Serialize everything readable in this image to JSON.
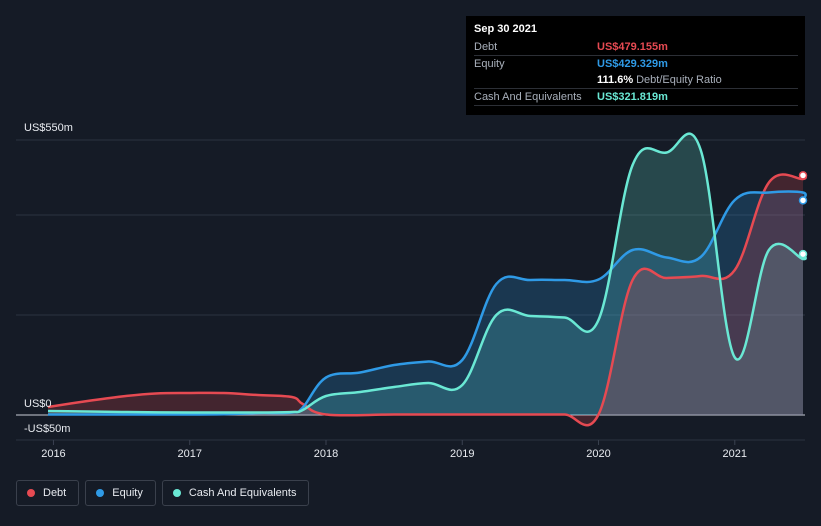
{
  "tooltip": {
    "date": "Sep 30 2021",
    "rows": [
      {
        "label": "Debt",
        "value": "US$479.155m",
        "color": "#e64a52"
      },
      {
        "label": "Equity",
        "value": "US$429.329m",
        "color": "#2f9ae6"
      },
      {
        "ratio_value": "111.6%",
        "ratio_label": "Debt/Equity Ratio"
      },
      {
        "label": "Cash And Equivalents",
        "value": "US$321.819m",
        "color": "#6ae8d4"
      }
    ]
  },
  "legend": [
    {
      "label": "Debt",
      "color": "#e64a52"
    },
    {
      "label": "Equity",
      "color": "#2f9ae6"
    },
    {
      "label": "Cash And Equivalents",
      "color": "#6ae8d4"
    }
  ],
  "chart_data": {
    "type": "area",
    "ylim": [
      -50,
      550
    ],
    "xlim": [
      2015.96,
      2021.75
    ],
    "y_tick_labels": [
      {
        "value": 550,
        "label": "US$550m"
      },
      {
        "value": 0,
        "label": "US$0"
      },
      {
        "value": -50,
        "label": "-US$50m"
      }
    ],
    "gridlines": [
      550,
      400,
      200,
      0
    ],
    "x_ticks": [
      {
        "value": 2016,
        "label": "2016"
      },
      {
        "value": 2017,
        "label": "2017"
      },
      {
        "value": 2018,
        "label": "2018"
      },
      {
        "value": 2019,
        "label": "2019"
      },
      {
        "value": 2020,
        "label": "2020"
      },
      {
        "value": 2021,
        "label": "2021"
      }
    ],
    "series": [
      {
        "name": "Equity",
        "color": "#2f9ae6",
        "points": [
          [
            2015.96,
            1
          ],
          [
            2016.5,
            1
          ],
          [
            2017.0,
            1
          ],
          [
            2017.25,
            1.5
          ],
          [
            2017.5,
            4
          ],
          [
            2017.75,
            5
          ],
          [
            2017.83,
            15
          ],
          [
            2018.0,
            75
          ],
          [
            2018.25,
            85
          ],
          [
            2018.5,
            100
          ],
          [
            2018.75,
            107
          ],
          [
            2019.0,
            110
          ],
          [
            2019.25,
            262
          ],
          [
            2019.5,
            270
          ],
          [
            2019.75,
            270
          ],
          [
            2020.0,
            271
          ],
          [
            2020.25,
            330
          ],
          [
            2020.5,
            315
          ],
          [
            2020.75,
            316
          ],
          [
            2021.0,
            430
          ],
          [
            2021.25,
            445
          ],
          [
            2021.5,
            445
          ],
          [
            2021.75,
            429.3
          ]
        ]
      },
      {
        "name": "Debt",
        "color": "#e64a52",
        "points": [
          [
            2015.96,
            16
          ],
          [
            2016.25,
            28
          ],
          [
            2016.5,
            37
          ],
          [
            2016.75,
            43
          ],
          [
            2017.0,
            44
          ],
          [
            2017.25,
            44
          ],
          [
            2017.5,
            40
          ],
          [
            2017.75,
            36
          ],
          [
            2017.83,
            22
          ],
          [
            2018.0,
            1
          ],
          [
            2018.5,
            1
          ],
          [
            2019.0,
            1
          ],
          [
            2019.5,
            1
          ],
          [
            2019.75,
            1
          ],
          [
            2020.0,
            1
          ],
          [
            2020.25,
            270
          ],
          [
            2020.5,
            274
          ],
          [
            2020.75,
            278
          ],
          [
            2021.0,
            290
          ],
          [
            2021.25,
            465
          ],
          [
            2021.5,
            472
          ],
          [
            2021.75,
            479.2
          ]
        ]
      },
      {
        "name": "Cash And Equivalents",
        "color": "#6ae8d4",
        "points": [
          [
            2015.96,
            8
          ],
          [
            2016.5,
            6
          ],
          [
            2017.0,
            5
          ],
          [
            2017.5,
            5
          ],
          [
            2017.75,
            6
          ],
          [
            2017.83,
            10
          ],
          [
            2018.0,
            38
          ],
          [
            2018.25,
            46
          ],
          [
            2018.5,
            56
          ],
          [
            2018.75,
            64
          ],
          [
            2019.0,
            60
          ],
          [
            2019.25,
            200
          ],
          [
            2019.5,
            198
          ],
          [
            2019.75,
            195
          ],
          [
            2020.0,
            190
          ],
          [
            2020.25,
            500
          ],
          [
            2020.5,
            525
          ],
          [
            2020.75,
            530
          ],
          [
            2021.0,
            115
          ],
          [
            2021.25,
            330
          ],
          [
            2021.5,
            312
          ],
          [
            2021.75,
            321.8
          ]
        ]
      }
    ]
  }
}
